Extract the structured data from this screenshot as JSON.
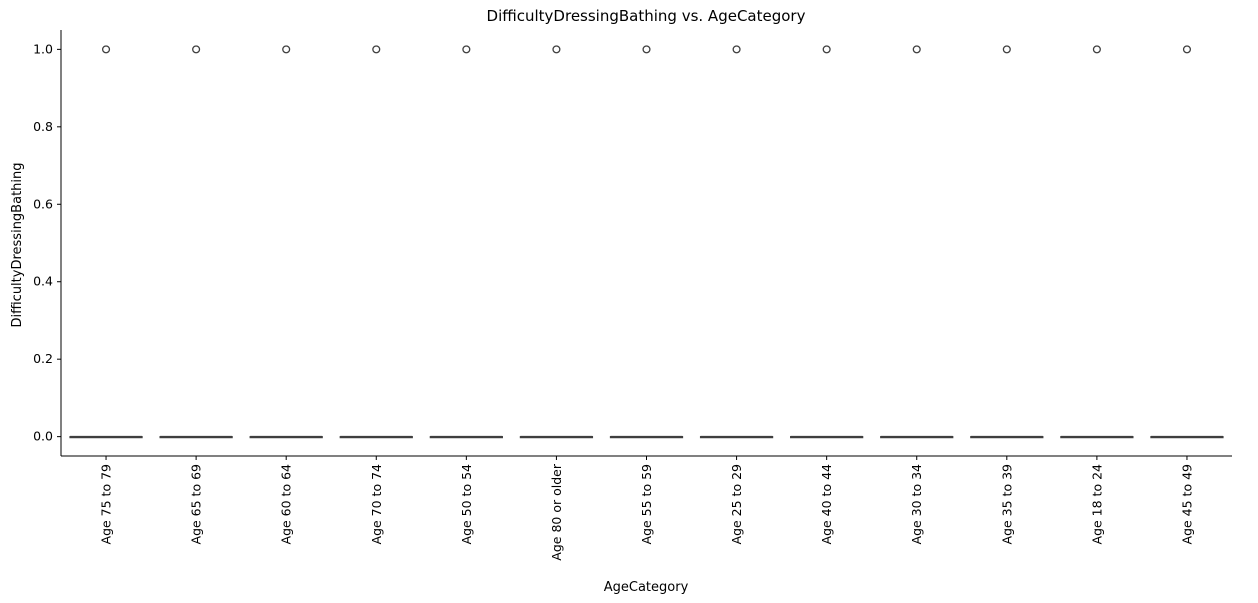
{
  "chart_data": {
    "type": "box",
    "title": "DifficultyDressingBathing vs. AgeCategory",
    "xlabel": "AgeCategory",
    "ylabel": "DifficultyDressingBathing",
    "categories": [
      "Age 75 to 79",
      "Age 65 to 69",
      "Age 60 to 64",
      "Age 70 to 74",
      "Age 50 to 54",
      "Age 80 or older",
      "Age 55 to 59",
      "Age 25 to 29",
      "Age 40 to 44",
      "Age 30 to 34",
      "Age 35 to 39",
      "Age 18 to 24",
      "Age 45 to 49"
    ],
    "boxes": [
      {
        "q1": 0,
        "median": 0,
        "q3": 0,
        "whisker_low": 0,
        "whisker_high": 0,
        "outliers": [
          1.0
        ]
      },
      {
        "q1": 0,
        "median": 0,
        "q3": 0,
        "whisker_low": 0,
        "whisker_high": 0,
        "outliers": [
          1.0
        ]
      },
      {
        "q1": 0,
        "median": 0,
        "q3": 0,
        "whisker_low": 0,
        "whisker_high": 0,
        "outliers": [
          1.0
        ]
      },
      {
        "q1": 0,
        "median": 0,
        "q3": 0,
        "whisker_low": 0,
        "whisker_high": 0,
        "outliers": [
          1.0
        ]
      },
      {
        "q1": 0,
        "median": 0,
        "q3": 0,
        "whisker_low": 0,
        "whisker_high": 0,
        "outliers": [
          1.0
        ]
      },
      {
        "q1": 0,
        "median": 0,
        "q3": 0,
        "whisker_low": 0,
        "whisker_high": 0,
        "outliers": [
          1.0
        ]
      },
      {
        "q1": 0,
        "median": 0,
        "q3": 0,
        "whisker_low": 0,
        "whisker_high": 0,
        "outliers": [
          1.0
        ]
      },
      {
        "q1": 0,
        "median": 0,
        "q3": 0,
        "whisker_low": 0,
        "whisker_high": 0,
        "outliers": [
          1.0
        ]
      },
      {
        "q1": 0,
        "median": 0,
        "q3": 0,
        "whisker_low": 0,
        "whisker_high": 0,
        "outliers": [
          1.0
        ]
      },
      {
        "q1": 0,
        "median": 0,
        "q3": 0,
        "whisker_low": 0,
        "whisker_high": 0,
        "outliers": [
          1.0
        ]
      },
      {
        "q1": 0,
        "median": 0,
        "q3": 0,
        "whisker_low": 0,
        "whisker_high": 0,
        "outliers": [
          1.0
        ]
      },
      {
        "q1": 0,
        "median": 0,
        "q3": 0,
        "whisker_low": 0,
        "whisker_high": 0,
        "outliers": [
          1.0
        ]
      },
      {
        "q1": 0,
        "median": 0,
        "q3": 0,
        "whisker_low": 0,
        "whisker_high": 0,
        "outliers": [
          1.0
        ]
      }
    ],
    "yticks": [
      0.0,
      0.2,
      0.4,
      0.6,
      0.8,
      1.0
    ],
    "ytick_labels": [
      "0.0",
      "0.2",
      "0.4",
      "0.6",
      "0.8",
      "1.0"
    ],
    "ylim": [
      -0.05,
      1.05
    ],
    "grid": false,
    "colors": {
      "axis": "#000000",
      "box_line": "#3f3f3f",
      "outlier": "#3f3f3f"
    }
  }
}
